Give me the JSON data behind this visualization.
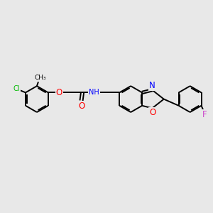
{
  "bg_color": "#e8e8e8",
  "bond_color": "#000000",
  "bond_width": 1.4,
  "atom_colors": {
    "Cl": "#00bb00",
    "O": "#ff0000",
    "N": "#0000ff",
    "F": "#cc44cc",
    "C": "#000000",
    "H": "#555555"
  },
  "font_size": 7.0,
  "fig_width": 3.0,
  "fig_height": 3.0
}
